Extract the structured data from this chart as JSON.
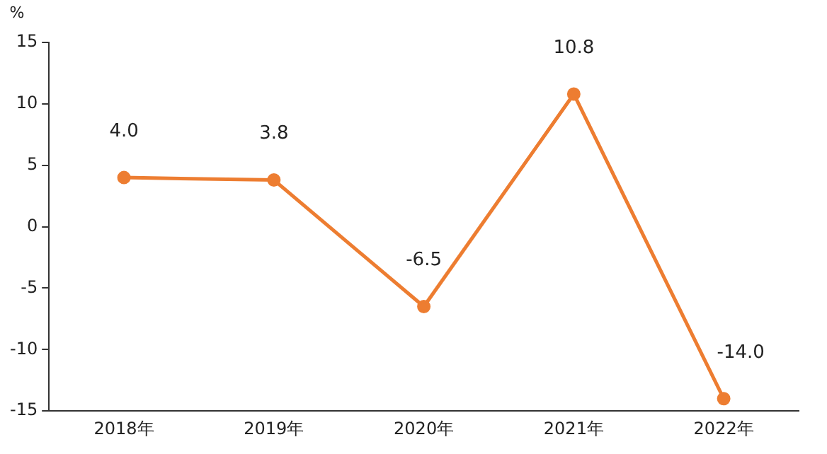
{
  "chart_data": {
    "type": "line",
    "ylabel": "%",
    "categories": [
      "2018年",
      "2019年",
      "2020年",
      "2021年",
      "2022年"
    ],
    "series": [
      {
        "color": "#ed7d31",
        "values": [
          4.0,
          3.8,
          -6.5,
          10.8,
          -14.0
        ],
        "value_labels": [
          "4.0",
          "3.8",
          "-6.5",
          "10.8",
          "-14.0"
        ]
      }
    ],
    "ylim": [
      -15,
      15
    ],
    "yticks": [
      -15,
      -10,
      -5,
      0,
      5,
      10,
      15
    ],
    "grid": false,
    "legend": false,
    "marker": "circle",
    "line_style": "solid"
  }
}
